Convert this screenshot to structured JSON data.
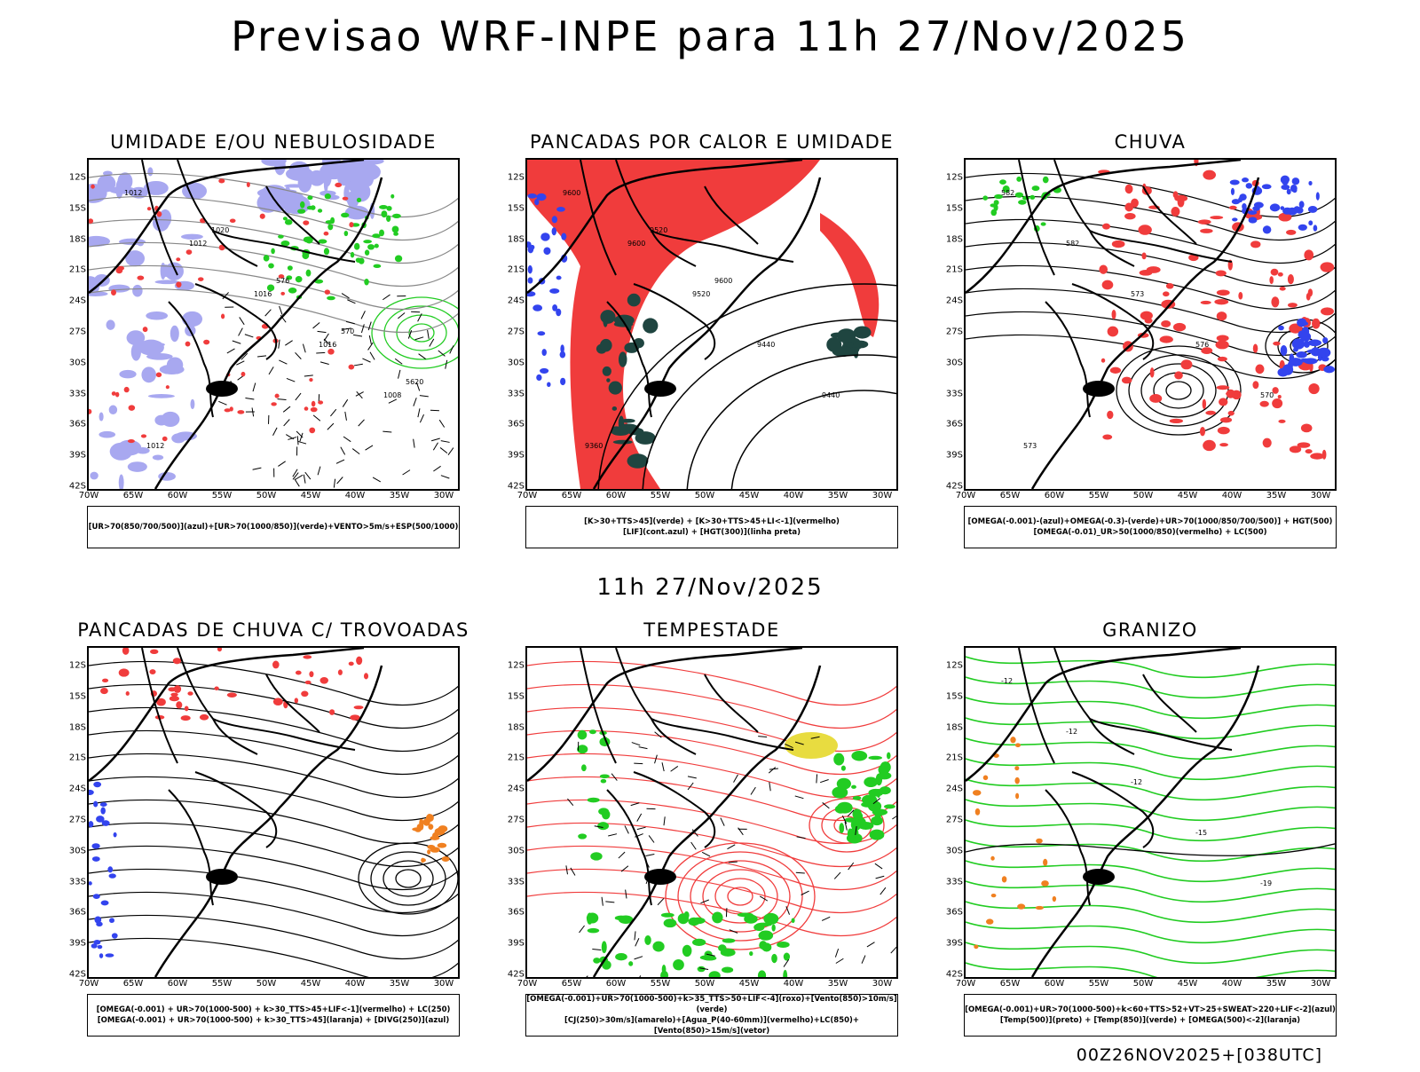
{
  "header": {
    "title": "Previsao WRF-INPE  para 11h 27/Nov/2025"
  },
  "middle": {
    "title": "11h 27/Nov/2025"
  },
  "footer": {
    "run": "00Z26NOV2025+[038UTC]"
  },
  "axes": {
    "lat_labels": [
      "12S",
      "15S",
      "18S",
      "21S",
      "24S",
      "27S",
      "30S",
      "33S",
      "36S",
      "39S",
      "42S"
    ],
    "lon_labels": [
      "70W",
      "65W",
      "60W",
      "55W",
      "50W",
      "45W",
      "40W",
      "35W",
      "30W"
    ]
  },
  "panels": [
    {
      "title": "UMIDADE E/OU NEBULOSIDADE",
      "legend": [
        "[UR>70(850/700/500)](azul)+[UR>70(1000/850)](verde)+VENTO>5m/s+ESP(500/1000)"
      ],
      "labels": [
        "1012",
        "1012",
        "1016",
        "1016",
        "1008",
        "1012",
        "1020",
        "576",
        "570",
        "5620"
      ]
    },
    {
      "title": "PANCADAS POR CALOR E UMIDADE",
      "legend": [
        "[K>30+TTS>45](verde) + [K>30+TTS>45+LI<-1](vermelho)",
        "[LIF](cont.azul) + [HGT(300)](linha preta)"
      ],
      "labels": [
        "9600",
        "9600",
        "9520",
        "9440",
        "9440",
        "9360",
        "9520",
        "9600"
      ]
    },
    {
      "title": "CHUVA",
      "legend": [
        "[OMEGA(-0.001)-(azul)+OMEGA(-0.3)-(verde)+UR>70(1000/850/700/500)] + HGT(500)",
        "[OMEGA(-0.01)_UR>50(1000/850)(vermelho) + LC(500)"
      ],
      "labels": [
        "582",
        "582",
        "573",
        "576",
        "570",
        "573"
      ]
    },
    {
      "title": "PANCADAS DE CHUVA C/ TROVOADAS",
      "legend": [
        "[OMEGA(-0.001) + UR>70(1000-500) + k>30_TTS>45+LIF<-1](vermelho) + LC(250)",
        "[OMEGA(-0.001) + UR>70(1000-500) + k>30_TTS>45](laranja) + [DIVG(250)](azul)"
      ],
      "labels": []
    },
    {
      "title": "TEMPESTADE",
      "legend": [
        "[OMEGA(-0.001)+UR>70(1000-500)+k>35_TTS>50+LIF<-4](roxo)+[Vento(850)>10m/s](verde)",
        "[CJ(250)>30m/s](amarelo)+[Agua_P(40-60mm)](vermelho)+LC(850)+[Vento(850)>15m/s](vetor)"
      ],
      "labels": []
    },
    {
      "title": "GRANIZO",
      "legend": [
        "[OMEGA(-0.001)+UR>70(1000-500)+k<60+TTS>52+VT>25+SWEAT>220+LIF<-2](azul)",
        "[Temp(500)](preto) + [Temp(850)](verde) + [OMEGA(500)<-2](laranja)"
      ],
      "labels": [
        "-12",
        "-12",
        "-12",
        "-15",
        "-19"
      ]
    }
  ],
  "chart_data": [
    {
      "type": "map",
      "title": "UMIDADE E/OU NEBULOSIDADE",
      "layers": [
        "UR>70 (850/700/500) azul",
        "UR>70 (1000/850) verde",
        "VENTO>5m/s",
        "ESP(500/1000)"
      ],
      "lat_range": [
        "42S",
        "12S"
      ],
      "lon_range": [
        "70W",
        "30W"
      ]
    },
    {
      "type": "map",
      "title": "PANCADAS POR CALOR E UMIDADE",
      "layers": [
        "K>30+TTS>45 verde",
        "K>30+TTS>45+LI<-1 vermelho",
        "LIF azul",
        "HGT(300) preto"
      ],
      "lat_range": [
        "42S",
        "12S"
      ],
      "lon_range": [
        "70W",
        "30W"
      ]
    },
    {
      "type": "map",
      "title": "CHUVA",
      "layers": [
        "OMEGA azul",
        "OMEGA verde",
        "OMEGA vermelho",
        "HGT(500)"
      ],
      "lat_range": [
        "42S",
        "12S"
      ],
      "lon_range": [
        "70W",
        "30W"
      ]
    },
    {
      "type": "map",
      "title": "PANCADAS DE CHUVA C/ TROVOADAS",
      "layers": [
        "vermelho",
        "laranja",
        "DIVG(250) azul",
        "LC(250)"
      ],
      "lat_range": [
        "42S",
        "12S"
      ],
      "lon_range": [
        "70W",
        "30W"
      ]
    },
    {
      "type": "map",
      "title": "TEMPESTADE",
      "layers": [
        "roxo",
        "Vento(850)>10m/s verde",
        "CJ(250)>30m/s amarelo",
        "Agua_P vermelho",
        "LC(850)"
      ],
      "lat_range": [
        "42S",
        "12S"
      ],
      "lon_range": [
        "70W",
        "30W"
      ]
    },
    {
      "type": "map",
      "title": "GRANIZO",
      "layers": [
        "azul",
        "Temp(500) preto",
        "Temp(850) verde",
        "OMEGA(500)<-2 laranja"
      ],
      "lat_range": [
        "42S",
        "12S"
      ],
      "lon_range": [
        "70W",
        "30W"
      ]
    }
  ],
  "colors": {
    "red": "#f03c3c",
    "green": "#22cc22",
    "blue": "#3344ee",
    "orange": "#f08020",
    "lav": "#a8a8f0",
    "dark": "#1f4540",
    "yellow": "#e8dc40"
  }
}
